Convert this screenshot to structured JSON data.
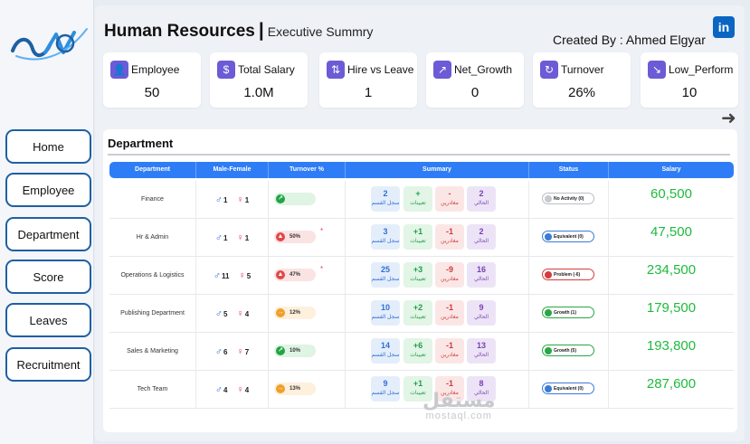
{
  "nav": [
    {
      "label": "Home"
    },
    {
      "label": "Employee"
    },
    {
      "label": "Department"
    },
    {
      "label": "Score"
    },
    {
      "label": "Leaves"
    },
    {
      "label": "Recruitment"
    }
  ],
  "header": {
    "title": "Human Resources",
    "separator": "|",
    "subtitle": "Executive Summry",
    "created_by": "Created By : Ahmed Elgyar",
    "linkedin_label": "in"
  },
  "kpis": [
    {
      "label": "Employee",
      "value": "50",
      "icon": "employee-icon"
    },
    {
      "label": "Total Salary",
      "value": "1.0M",
      "icon": "salary-icon"
    },
    {
      "label": "Hire vs Leave",
      "value": "1",
      "icon": "hire-icon"
    },
    {
      "label": "Net_Growth",
      "value": "0",
      "icon": "growth-icon"
    },
    {
      "label": "Turnover",
      "value": "26%",
      "icon": "turnover-icon"
    },
    {
      "label": "Low_Perform",
      "value": "10",
      "icon": "low-perform-icon"
    }
  ],
  "panel": {
    "title": "Department",
    "columns": [
      "Department",
      "Male-Female",
      "Turnover %",
      "Summary",
      "Status",
      "Salary"
    ],
    "summary_labels": {
      "dept": "سجل القسم",
      "hires": "تعيينات",
      "leaves": "مغادرين",
      "current": "الحالي"
    },
    "rows": [
      {
        "department": "Finance",
        "male": "1",
        "female": "1",
        "turnover": "",
        "trend": "up",
        "star": "",
        "dept_total": "2",
        "hires": "+",
        "leaves": "-",
        "current": "2",
        "status": "No Activity (0)",
        "status_type": "none",
        "salary": "60,500"
      },
      {
        "department": "Hr & Admin",
        "male": "1",
        "female": "1",
        "turnover": "50%",
        "trend": "warn",
        "star": "*",
        "dept_total": "3",
        "hires": "+1",
        "leaves": "-1",
        "current": "2",
        "status": "Equivalent (0)",
        "status_type": "equivalent",
        "salary": "47,500"
      },
      {
        "department": "Operations & Logistics",
        "male": "11",
        "female": "5",
        "turnover": "47%",
        "trend": "warn",
        "star": "*",
        "dept_total": "25",
        "hires": "+3",
        "leaves": "-9",
        "current": "16",
        "status": "Problem (-6)",
        "status_type": "problem",
        "salary": "234,500"
      },
      {
        "department": "Publishing Department",
        "male": "5",
        "female": "4",
        "turnover": "12%",
        "trend": "mid",
        "star": "",
        "dept_total": "10",
        "hires": "+2",
        "leaves": "-1",
        "current": "9",
        "status": "Growth (1)",
        "status_type": "growth",
        "salary": "179,500"
      },
      {
        "department": "Sales & Marketing",
        "male": "6",
        "female": "7",
        "turnover": "10%",
        "trend": "up",
        "star": "",
        "dept_total": "14",
        "hires": "+6",
        "leaves": "-1",
        "current": "13",
        "status": "Growth (5)",
        "status_type": "growth",
        "salary": "193,800"
      },
      {
        "department": "Tech Team",
        "male": "4",
        "female": "4",
        "turnover": "13%",
        "trend": "mid",
        "star": "",
        "dept_total": "9",
        "hires": "+1",
        "leaves": "-1",
        "current": "8",
        "status": "Equivalent (0)",
        "status_type": "equivalent",
        "salary": "287,600"
      }
    ]
  },
  "watermark": {
    "arabic": "مستقل",
    "latin": "mostaql.com"
  },
  "colors": {
    "accent": "#2f7df6",
    "nav_border": "#1f5fa3",
    "salary": "#1fba3c",
    "kpi_icon": "#6b5bd6"
  }
}
